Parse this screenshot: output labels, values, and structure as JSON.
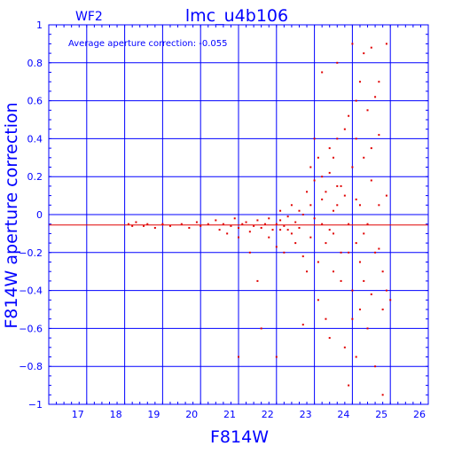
{
  "chart_data": {
    "type": "scatter",
    "title": "lmc_u4b106",
    "corner_label": "WF2",
    "annotation": "Average aperture correction:  -0.055",
    "xlabel": "F814W",
    "ylabel": "F814W aperture correction",
    "xlim": [
      16,
      26
    ],
    "ylim": [
      -1,
      1
    ],
    "x_ticks": [
      17,
      18,
      19,
      20,
      21,
      22,
      23,
      24,
      25,
      26
    ],
    "y_ticks": [
      1,
      0.8,
      0.6,
      0.4,
      0.2,
      0,
      -0.2,
      -0.4,
      -0.6,
      -0.8,
      -1
    ],
    "x_tick_labels": [
      "17",
      "18",
      "19",
      "20",
      "21",
      "22",
      "23",
      "24",
      "25",
      "26"
    ],
    "y_tick_labels": [
      "1",
      "0.8",
      "0.6",
      "0.4",
      "0.2",
      "0",
      "−0.2",
      "−0.4",
      "−0.6",
      "−0.8",
      "−1"
    ],
    "grid": true,
    "reference_line": {
      "y": -0.055,
      "color": "#e00000"
    },
    "axis_color": "#0000ff",
    "point_color": "#e00000",
    "points": [
      [
        18.1,
        -0.05
      ],
      [
        18.2,
        -0.06
      ],
      [
        18.3,
        -0.04
      ],
      [
        18.5,
        -0.06
      ],
      [
        18.6,
        -0.05
      ],
      [
        18.8,
        -0.07
      ],
      [
        19.0,
        -0.05
      ],
      [
        19.2,
        -0.06
      ],
      [
        19.5,
        -0.05
      ],
      [
        19.7,
        -0.07
      ],
      [
        19.9,
        -0.04
      ],
      [
        20.0,
        -0.06
      ],
      [
        20.2,
        -0.05
      ],
      [
        20.4,
        -0.03
      ],
      [
        20.5,
        -0.08
      ],
      [
        20.6,
        -0.05
      ],
      [
        20.8,
        -0.06
      ],
      [
        20.9,
        -0.02
      ],
      [
        21.0,
        -0.07
      ],
      [
        21.1,
        -0.05
      ],
      [
        21.2,
        -0.04
      ],
      [
        21.3,
        -0.09
      ],
      [
        21.4,
        -0.06
      ],
      [
        21.5,
        -0.03
      ],
      [
        21.6,
        -0.07
      ],
      [
        21.7,
        -0.05
      ],
      [
        21.8,
        -0.02
      ],
      [
        21.9,
        -0.08
      ],
      [
        22.0,
        -0.05
      ],
      [
        22.1,
        -0.03
      ],
      [
        22.2,
        -0.06
      ],
      [
        22.3,
        -0.01
      ],
      [
        22.4,
        -0.1
      ],
      [
        22.5,
        -0.04
      ],
      [
        22.6,
        -0.07
      ],
      [
        22.7,
        0.0
      ],
      [
        20.7,
        -0.1
      ],
      [
        21.0,
        -0.12
      ],
      [
        21.3,
        -0.2
      ],
      [
        21.5,
        -0.35
      ],
      [
        21.6,
        -0.6
      ],
      [
        21.8,
        -0.12
      ],
      [
        22.0,
        -0.17
      ],
      [
        22.1,
        0.02
      ],
      [
        22.2,
        -0.2
      ],
      [
        22.3,
        -0.08
      ],
      [
        22.4,
        0.05
      ],
      [
        22.5,
        -0.15
      ],
      [
        22.6,
        0.02
      ],
      [
        22.7,
        -0.22
      ],
      [
        22.8,
        0.12
      ],
      [
        22.9,
        -0.12
      ],
      [
        23.0,
        0.18
      ],
      [
        23.1,
        -0.25
      ],
      [
        23.2,
        0.08
      ],
      [
        23.3,
        -0.15
      ],
      [
        23.4,
        0.22
      ],
      [
        23.5,
        -0.3
      ],
      [
        23.6,
        0.05
      ],
      [
        23.7,
        -0.2
      ],
      [
        22.0,
        -0.75
      ],
      [
        22.7,
        -0.58
      ],
      [
        21.0,
        -0.75
      ],
      [
        22.1,
        -0.08
      ],
      [
        22.9,
        0.05
      ],
      [
        23.0,
        -0.02
      ],
      [
        23.1,
        0.3
      ],
      [
        23.2,
        -0.05
      ],
      [
        23.3,
        0.12
      ],
      [
        23.4,
        -0.08
      ],
      [
        23.5,
        0.02
      ],
      [
        23.6,
        0.4
      ],
      [
        23.1,
        -0.45
      ],
      [
        23.2,
        0.2
      ],
      [
        23.3,
        -0.55
      ],
      [
        23.4,
        0.35
      ],
      [
        23.5,
        -0.1
      ],
      [
        23.6,
        0.15
      ],
      [
        23.7,
        -0.35
      ],
      [
        23.8,
        0.1
      ],
      [
        23.9,
        -0.05
      ],
      [
        24.0,
        0.25
      ],
      [
        24.1,
        -0.15
      ],
      [
        24.2,
        0.05
      ],
      [
        23.8,
        0.45
      ],
      [
        23.9,
        0.52
      ],
      [
        24.0,
        -0.4
      ],
      [
        24.1,
        0.4
      ],
      [
        24.2,
        -0.25
      ],
      [
        24.3,
        0.3
      ],
      [
        24.4,
        -0.05
      ],
      [
        24.5,
        0.18
      ],
      [
        24.6,
        -0.2
      ],
      [
        24.7,
        0.42
      ],
      [
        24.8,
        -0.3
      ],
      [
        24.9,
        0.1
      ],
      [
        23.8,
        -0.7
      ],
      [
        23.9,
        -0.9
      ],
      [
        24.0,
        -0.55
      ],
      [
        24.1,
        0.6
      ],
      [
        24.2,
        -0.5
      ],
      [
        24.3,
        0.85
      ],
      [
        24.4,
        -0.6
      ],
      [
        24.5,
        0.88
      ],
      [
        24.6,
        -0.8
      ],
      [
        24.7,
        0.7
      ],
      [
        24.8,
        -0.5
      ],
      [
        24.9,
        0.9
      ],
      [
        23.2,
        0.75
      ],
      [
        23.6,
        0.8
      ],
      [
        24.0,
        0.9
      ],
      [
        24.2,
        0.7
      ],
      [
        24.4,
        0.55
      ],
      [
        24.6,
        0.62
      ],
      [
        24.8,
        -0.95
      ],
      [
        24.3,
        -0.35
      ],
      [
        23.4,
        -0.65
      ],
      [
        24.1,
        -0.75
      ],
      [
        24.5,
        -0.42
      ],
      [
        24.7,
        -0.18
      ],
      [
        23.5,
        0.3
      ],
      [
        23.7,
        0.15
      ],
      [
        23.9,
        -0.2
      ],
      [
        24.1,
        0.08
      ],
      [
        24.3,
        -0.1
      ],
      [
        24.5,
        0.35
      ],
      [
        24.7,
        0.05
      ],
      [
        24.9,
        -0.4
      ],
      [
        25.0,
        -0.45
      ],
      [
        23.0,
        0.4
      ],
      [
        22.9,
        0.25
      ],
      [
        22.8,
        -0.3
      ]
    ]
  }
}
